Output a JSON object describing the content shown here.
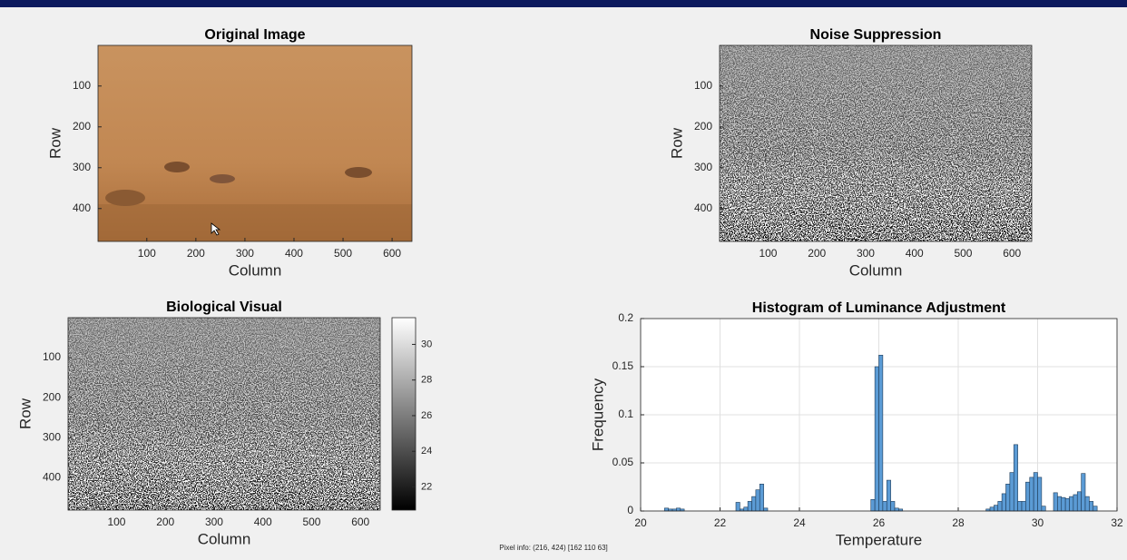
{
  "chart_data": [
    {
      "type": "image",
      "title": "Original Image",
      "xlabel": "Column",
      "ylabel": "Row",
      "xlim": [
        0.5,
        640.5
      ],
      "ylim": [
        0.5,
        480.5
      ],
      "y_reversed": true,
      "xticks": [
        100,
        200,
        300,
        400,
        500,
        600
      ],
      "yticks": [
        100,
        200,
        300,
        400
      ]
    },
    {
      "type": "image",
      "title": "Noise Suppression",
      "xlabel": "Column",
      "ylabel": "Row",
      "xlim": [
        0.5,
        640.5
      ],
      "ylim": [
        0.5,
        480.5
      ],
      "y_reversed": true,
      "xticks": [
        100,
        200,
        300,
        400,
        500,
        600
      ],
      "yticks": [
        100,
        200,
        300,
        400
      ]
    },
    {
      "type": "image",
      "title": "Biological Visual",
      "xlabel": "Column",
      "ylabel": "Row",
      "xlim": [
        0.5,
        640.5
      ],
      "ylim": [
        0.5,
        480.5
      ],
      "y_reversed": true,
      "xticks": [
        100,
        200,
        300,
        400,
        500,
        600
      ],
      "yticks": [
        100,
        200,
        300,
        400
      ],
      "colorbar": {
        "lim": [
          20.7,
          31.5
        ],
        "ticks": [
          22,
          24,
          26,
          28,
          30
        ]
      }
    },
    {
      "type": "histogram",
      "title": "Histogram of Luminance Adjustment",
      "xlabel": "Temperature",
      "ylabel": "Frequency",
      "xlim": [
        20,
        32
      ],
      "ylim": [
        0,
        0.2
      ],
      "xticks": [
        20,
        22,
        24,
        26,
        28,
        30,
        32
      ],
      "yticks": [
        0,
        0.05,
        0.1,
        0.15,
        0.2
      ],
      "grid": true,
      "color": "#5b9bd5",
      "bins": [
        20.6,
        20.7,
        20.8,
        20.9,
        21.0,
        21.1,
        21.2,
        21.3,
        21.4,
        21.5,
        21.6,
        21.7,
        21.8,
        21.9,
        22.0,
        22.1,
        22.2,
        22.3,
        22.4,
        22.5,
        22.6,
        22.7,
        22.8,
        22.9,
        23.0,
        23.1,
        23.2,
        23.3,
        23.4,
        23.5,
        23.6,
        23.7,
        23.8,
        23.9,
        24.0,
        24.1,
        24.2,
        24.3,
        24.4,
        24.5,
        24.6,
        24.7,
        24.8,
        24.9,
        25.0,
        25.1,
        25.2,
        25.3,
        25.4,
        25.5,
        25.6,
        25.7,
        25.8,
        25.9,
        26.0,
        26.1,
        26.2,
        26.3,
        26.4,
        26.5,
        26.6,
        26.7,
        26.8,
        26.9,
        27.0,
        27.1,
        27.2,
        27.3,
        27.4,
        27.5,
        27.6,
        27.7,
        27.8,
        27.9,
        28.0,
        28.1,
        28.2,
        28.3,
        28.4,
        28.5,
        28.6,
        28.7,
        28.8,
        28.9,
        29.0,
        29.1,
        29.2,
        29.3,
        29.4,
        29.5,
        29.6,
        29.7,
        29.8,
        29.9,
        30.0,
        30.1,
        30.2,
        30.3,
        30.4,
        30.5,
        30.6,
        30.7,
        30.8,
        30.9,
        31.0,
        31.1,
        31.2,
        31.3,
        31.4,
        31.5
      ],
      "values": [
        0.003,
        0.002,
        0.002,
        0.003,
        0.002,
        0,
        0,
        0,
        0,
        0,
        0,
        0,
        0,
        0,
        0,
        0,
        0,
        0,
        0.009,
        0.002,
        0.004,
        0.01,
        0.015,
        0.022,
        0.028,
        0.003,
        0,
        0,
        0,
        0,
        0,
        0,
        0,
        0,
        0,
        0,
        0,
        0,
        0,
        0,
        0,
        0,
        0,
        0,
        0,
        0,
        0,
        0,
        0,
        0,
        0,
        0,
        0.012,
        0.15,
        0.162,
        0.01,
        0.032,
        0.01,
        0.003,
        0.002,
        0,
        0,
        0,
        0,
        0,
        0,
        0,
        0,
        0,
        0,
        0,
        0,
        0,
        0,
        0,
        0,
        0,
        0,
        0,
        0,
        0,
        0.002,
        0.004,
        0.006,
        0.01,
        0.018,
        0.028,
        0.04,
        0.069,
        0.01,
        0.01,
        0.03,
        0.035,
        0.04,
        0.035,
        0.005,
        0,
        0,
        0.019,
        0.015,
        0.014,
        0.013,
        0.015,
        0.017,
        0.02,
        0.039,
        0.015,
        0.01,
        0.005
      ]
    }
  ],
  "pixel_info": "Pixel info: (216, 424)  [162 110 63]"
}
